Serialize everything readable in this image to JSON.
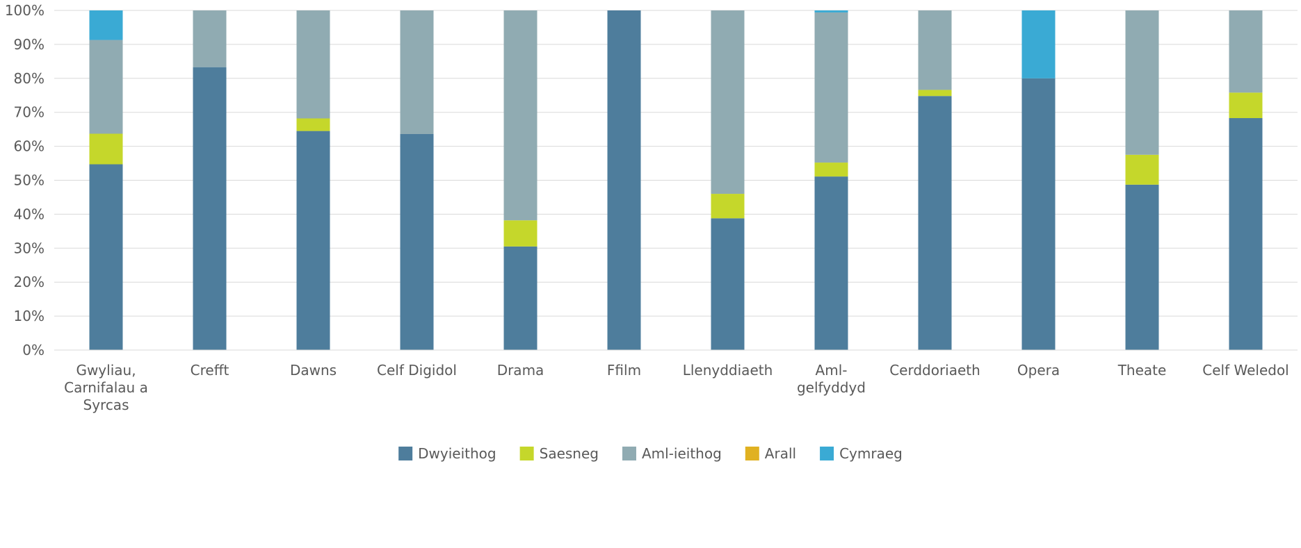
{
  "chart_data": {
    "type": "bar",
    "stacked": true,
    "categories": [
      [
        "Gwyliau,",
        "Carnifalau a",
        "Syrcas"
      ],
      [
        "Crefft"
      ],
      [
        "Dawns"
      ],
      [
        "Celf Digidol"
      ],
      [
        "Drama"
      ],
      [
        "Ffilm"
      ],
      [
        "Llenyddiaeth"
      ],
      [
        "Aml-",
        "gelfyddyd"
      ],
      [
        "Cerddoriaeth"
      ],
      [
        "Opera"
      ],
      [
        "Theate"
      ],
      [
        "Celf Weledol"
      ]
    ],
    "series": [
      {
        "name": "Dwyieithog",
        "color": "#4e7d9c",
        "values": [
          54.7,
          83.3,
          64.5,
          63.6,
          30.5,
          100,
          38.8,
          51.1,
          74.8,
          80,
          48.7,
          68.3
        ]
      },
      {
        "name": "Saesneg",
        "color": "#c5d72b",
        "values": [
          9.0,
          0,
          3.7,
          0,
          7.7,
          0,
          7.2,
          4.1,
          1.8,
          0,
          8.8,
          7.5
        ]
      },
      {
        "name": "Aml-ieithog",
        "color": "#90abb2",
        "values": [
          27.6,
          16.7,
          31.8,
          36.4,
          61.8,
          0,
          54.0,
          44.2,
          23.4,
          0,
          42.5,
          24.2
        ]
      },
      {
        "name": "Arall",
        "color": "#e0b121",
        "values": [
          0,
          0,
          0,
          0,
          0,
          0,
          0,
          0,
          0,
          0,
          0,
          0
        ]
      },
      {
        "name": "Cymraeg",
        "color": "#3aaad4",
        "values": [
          8.7,
          0,
          0,
          0,
          0,
          0,
          0,
          0.6,
          0,
          20,
          0,
          0
        ]
      }
    ],
    "y_ticks": [
      "0%",
      "10%",
      "20%",
      "30%",
      "40%",
      "50%",
      "60%",
      "70%",
      "80%",
      "90%",
      "100%"
    ],
    "ylim": [
      0,
      100
    ],
    "grid": true,
    "legend_position": "bottom"
  }
}
